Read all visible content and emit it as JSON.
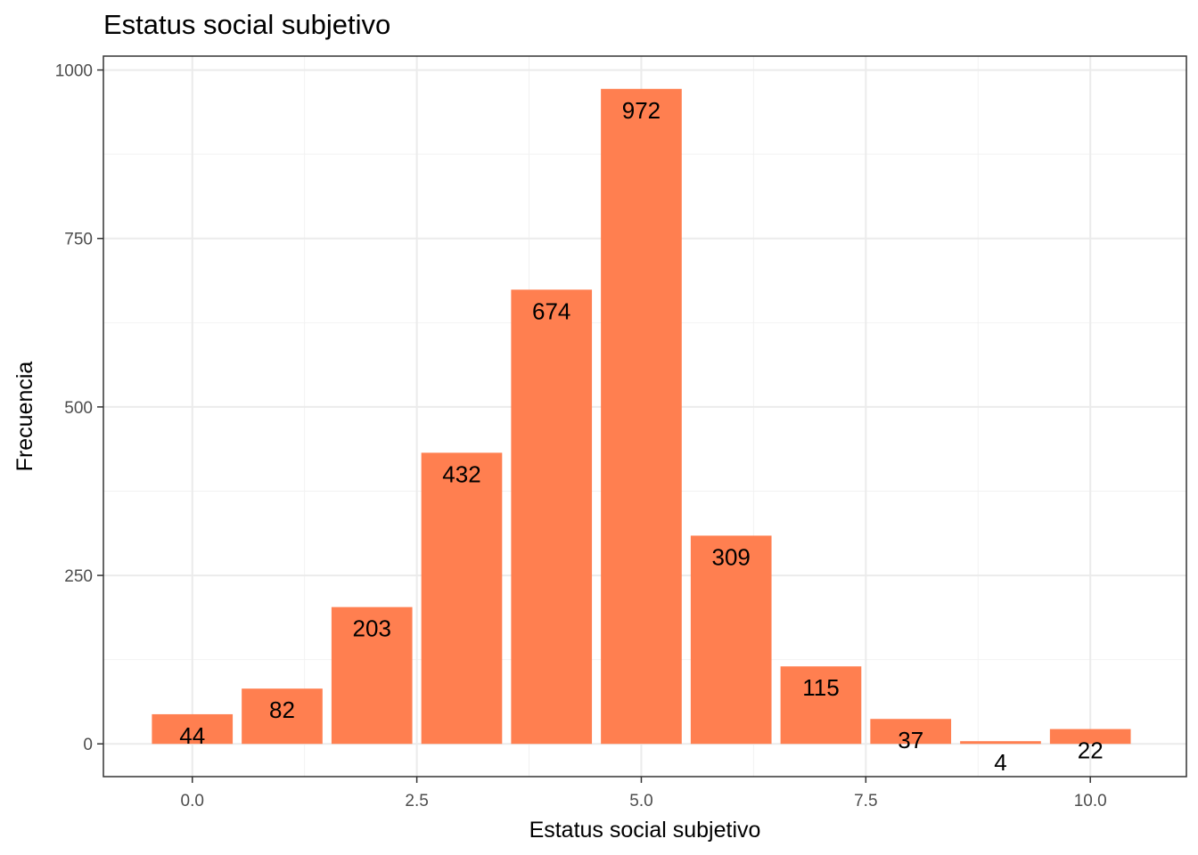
{
  "chart_data": {
    "type": "bar",
    "title": "Estatus social subjetivo",
    "xlabel": "Estatus social subjetivo",
    "ylabel": "Frecuencia",
    "x": [
      0,
      1,
      2,
      3,
      4,
      5,
      6,
      7,
      8,
      9,
      10
    ],
    "values": [
      44,
      82,
      203,
      432,
      674,
      972,
      309,
      115,
      37,
      4,
      22
    ],
    "data_labels": [
      "44",
      "82",
      "203",
      "432",
      "674",
      "972",
      "309",
      "115",
      "37",
      "4",
      "22"
    ],
    "xlim": [
      -0.99,
      11.07
    ],
    "ylim": [
      -48.6,
      1020.6
    ],
    "x_ticks": [
      0,
      2.5,
      5,
      7.5,
      10
    ],
    "x_tick_labels": [
      "0.0",
      "2.5",
      "5.0",
      "7.5",
      "10.0"
    ],
    "y_ticks": [
      0,
      250,
      500,
      750,
      1000
    ],
    "y_tick_labels": [
      "0",
      "250",
      "500",
      "750",
      "1000"
    ],
    "bar_width": 0.9,
    "grid": true,
    "colors": {
      "bar": "#ff7f50",
      "grid_major": "#ebebeb",
      "grid_minor": "#f2f2f2",
      "panel_border": "#333333",
      "tick_text": "#4d4d4d"
    }
  }
}
